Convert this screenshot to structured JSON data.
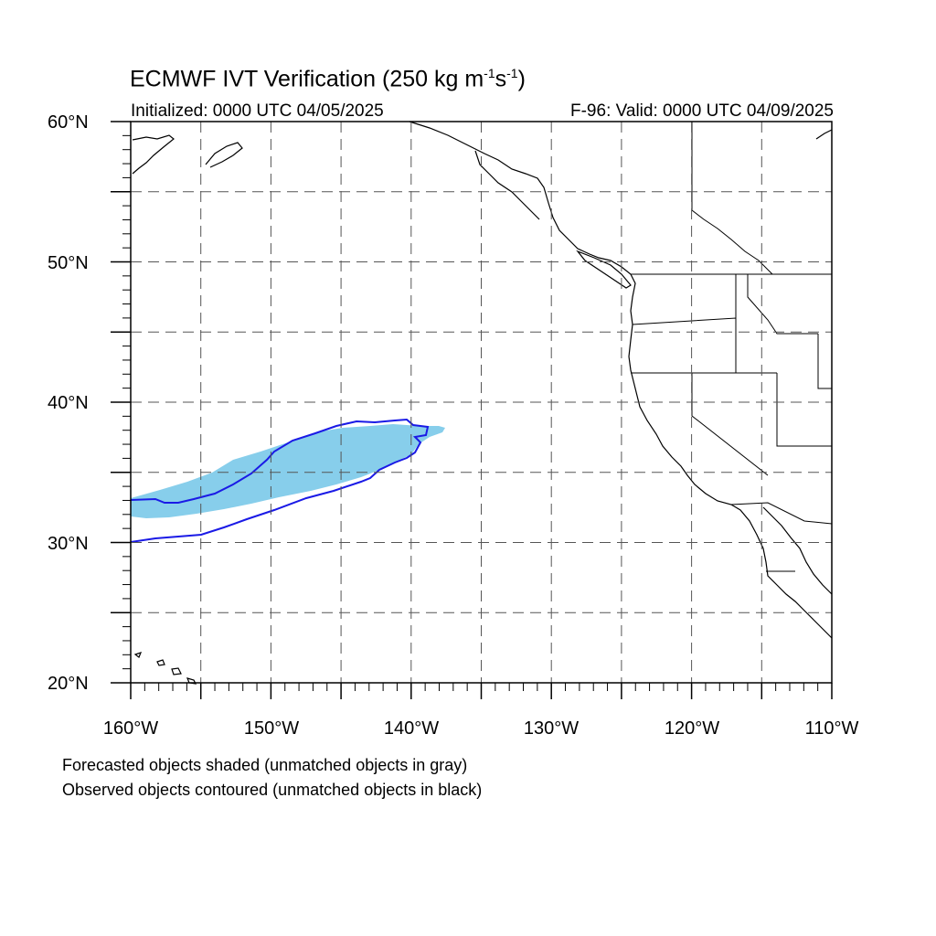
{
  "title": {
    "main": "ECMWF IVT Verification (250 kg m",
    "exp1": "-1",
    "mid": "s",
    "exp2": "-1",
    "end": ")"
  },
  "subtitle": {
    "left": "Initialized: 0000 UTC 04/05/2025",
    "right": "F-96: Valid: 0000 UTC 04/09/2025"
  },
  "map": {
    "lon_range": [
      -160,
      -110
    ],
    "lat_range": [
      20,
      60
    ],
    "lat_labels": [
      {
        "value": 60,
        "text": "60°N"
      },
      {
        "value": 50,
        "text": "50°N"
      },
      {
        "value": 40,
        "text": "40°N"
      },
      {
        "value": 30,
        "text": "30°N"
      },
      {
        "value": 20,
        "text": "20°N"
      }
    ],
    "lon_labels": [
      {
        "value": -160,
        "text": "160°W"
      },
      {
        "value": -150,
        "text": "150°W"
      },
      {
        "value": -140,
        "text": "140°W"
      },
      {
        "value": -130,
        "text": "130°W"
      },
      {
        "value": -120,
        "text": "120°W"
      },
      {
        "value": -110,
        "text": "110°W"
      }
    ],
    "grid_dashed": true,
    "colors": {
      "forecast_fill": "#87ceeb",
      "observed_contour": "#1a1ae6",
      "coastline": "#000000",
      "grid": "#555555"
    }
  },
  "legend": {
    "line1": "Forecasted objects shaded (unmatched objects in gray)",
    "line2": "Observed objects contoured (unmatched objects in black)"
  }
}
